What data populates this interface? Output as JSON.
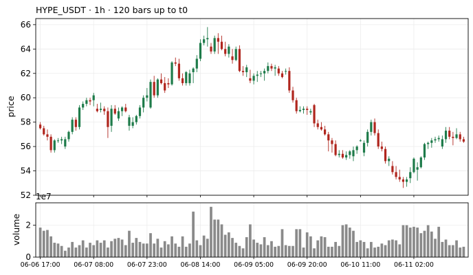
{
  "chart_data": {
    "type": "candlestick",
    "title": "HYPE_USDT  ·  1h  ·  120 bars up to t0",
    "price_ylabel": "price",
    "volume_ylabel": "volume",
    "volume_multiplier": "1e7",
    "price_ylim": [
      52,
      66.5
    ],
    "price_yticks": [
      52,
      54,
      56,
      58,
      60,
      62,
      64,
      66
    ],
    "volume_ylim": [
      0,
      3.4
    ],
    "volume_yticks": [
      0,
      2
    ],
    "x_ticks": [
      {
        "bar": 0,
        "label": "06-06 17:00"
      },
      {
        "bar": 15,
        "label": "06-07 08:00"
      },
      {
        "bar": 30,
        "label": "06-07 23:00"
      },
      {
        "bar": 45,
        "label": "06-08 14:00"
      },
      {
        "bar": 60,
        "label": "06-09 05:00"
      },
      {
        "bar": 75,
        "label": "06-09 20:00"
      },
      {
        "bar": 90,
        "label": "06-10 11:00"
      },
      {
        "bar": 105,
        "label": "06-11 02:00"
      }
    ],
    "grid": true,
    "colors": {
      "up": "#1e7b4a",
      "down": "#b0261e",
      "volume": "#8a8a8a"
    },
    "ohlc": [
      [
        57.8,
        58.0,
        57.4,
        57.5
      ],
      [
        57.5,
        57.7,
        56.9,
        57.0
      ],
      [
        57.0,
        57.4,
        56.5,
        56.8
      ],
      [
        56.8,
        57.0,
        55.5,
        55.7
      ],
      [
        55.7,
        56.6,
        55.5,
        56.5
      ],
      [
        56.5,
        56.7,
        56.3,
        56.5
      ],
      [
        56.5,
        56.8,
        56.2,
        56.6
      ],
      [
        56.0,
        56.8,
        55.8,
        56.6
      ],
      [
        56.6,
        57.3,
        56.4,
        57.2
      ],
      [
        57.2,
        58.4,
        57.0,
        58.2
      ],
      [
        58.2,
        58.4,
        57.3,
        57.6
      ],
      [
        57.6,
        59.4,
        57.4,
        59.2
      ],
      [
        59.2,
        59.7,
        59.0,
        59.5
      ],
      [
        59.5,
        60.0,
        59.3,
        59.8
      ],
      [
        59.8,
        60.0,
        59.4,
        59.7
      ],
      [
        59.8,
        60.4,
        59.3,
        60.2
      ],
      [
        59.1,
        59.5,
        58.8,
        58.9
      ],
      [
        59.0,
        59.6,
        58.8,
        59.1
      ],
      [
        59.1,
        59.3,
        58.6,
        58.9
      ],
      [
        58.9,
        59.2,
        56.7,
        57.6
      ],
      [
        57.7,
        59.4,
        57.2,
        59.1
      ],
      [
        59.1,
        59.4,
        58.6,
        58.7
      ],
      [
        58.3,
        59.2,
        58.1,
        58.9
      ],
      [
        58.9,
        59.3,
        58.5,
        59.2
      ],
      [
        59.2,
        59.5,
        58.8,
        58.9
      ],
      [
        57.7,
        58.6,
        57.3,
        58.4
      ],
      [
        57.7,
        58.4,
        57.5,
        58.0
      ],
      [
        58.0,
        58.6,
        57.8,
        58.5
      ],
      [
        58.5,
        59.4,
        58.3,
        59.2
      ],
      [
        59.2,
        60.2,
        58.8,
        60.0
      ],
      [
        60.0,
        60.8,
        59.7,
        60.2
      ],
      [
        59.2,
        61.5,
        59.1,
        61.3
      ],
      [
        61.3,
        61.8,
        60.0,
        60.2
      ],
      [
        60.2,
        61.6,
        60.0,
        61.5
      ],
      [
        61.5,
        62.0,
        61.1,
        61.2
      ],
      [
        61.2,
        61.7,
        60.4,
        60.6
      ],
      [
        61.2,
        61.6,
        60.8,
        61.1
      ],
      [
        61.1,
        63.0,
        61.0,
        62.9
      ],
      [
        62.9,
        63.3,
        62.6,
        62.8
      ],
      [
        62.8,
        63.2,
        61.4,
        61.6
      ],
      [
        61.6,
        62.0,
        61.0,
        61.2
      ],
      [
        61.2,
        62.2,
        61.0,
        62.1
      ],
      [
        61.2,
        62.3,
        61.0,
        62.0
      ],
      [
        62.1,
        62.5,
        61.2,
        62.4
      ],
      [
        62.4,
        63.5,
        62.1,
        63.2
      ],
      [
        63.2,
        64.8,
        63.0,
        64.5
      ],
      [
        64.5,
        65.1,
        64.3,
        64.8
      ],
      [
        64.8,
        65.8,
        64.2,
        64.9
      ],
      [
        64.2,
        64.5,
        63.6,
        63.8
      ],
      [
        63.8,
        65.1,
        63.6,
        64.9
      ],
      [
        64.9,
        65.3,
        63.6,
        64.6
      ],
      [
        64.6,
        65.1,
        63.9,
        64.0
      ],
      [
        64.0,
        64.6,
        63.4,
        63.6
      ],
      [
        63.6,
        64.4,
        63.3,
        64.2
      ],
      [
        63.4,
        64.0,
        62.8,
        63.1
      ],
      [
        63.1,
        64.2,
        63.0,
        64.0
      ],
      [
        64.0,
        64.3,
        62.1,
        62.2
      ],
      [
        62.2,
        62.6,
        61.8,
        62.1
      ],
      [
        62.1,
        62.7,
        61.7,
        62.5
      ],
      [
        61.6,
        62.3,
        61.2,
        61.4
      ],
      [
        61.4,
        62.0,
        61.1,
        61.8
      ],
      [
        61.8,
        62.2,
        61.3,
        61.9
      ],
      [
        62.0,
        62.2,
        61.7,
        62.0
      ],
      [
        62.0,
        62.4,
        61.4,
        62.2
      ],
      [
        62.2,
        62.9,
        62.0,
        62.6
      ],
      [
        62.6,
        62.8,
        62.2,
        62.4
      ],
      [
        62.4,
        62.7,
        61.8,
        62.5
      ],
      [
        62.4,
        62.6,
        61.8,
        62.0
      ],
      [
        62.0,
        62.2,
        61.6,
        61.7
      ],
      [
        62.2,
        62.4,
        61.9,
        62.2
      ],
      [
        62.2,
        62.5,
        60.4,
        60.6
      ],
      [
        60.6,
        60.9,
        59.6,
        59.8
      ],
      [
        59.8,
        60.0,
        58.7,
        58.9
      ],
      [
        58.9,
        59.3,
        58.8,
        59.0
      ],
      [
        59.0,
        59.3,
        58.7,
        59.1
      ],
      [
        59.1,
        59.3,
        58.6,
        59.0
      ],
      [
        58.8,
        59.1,
        58.6,
        58.9
      ],
      [
        59.4,
        59.5,
        57.6,
        57.9
      ],
      [
        57.9,
        58.2,
        57.4,
        57.6
      ],
      [
        57.6,
        58.0,
        57.3,
        57.4
      ],
      [
        57.4,
        57.7,
        56.9,
        57.0
      ],
      [
        57.0,
        57.2,
        55.6,
        56.5
      ],
      [
        56.5,
        56.7,
        55.5,
        56.2
      ],
      [
        56.2,
        56.5,
        55.2,
        55.3
      ],
      [
        55.3,
        55.7,
        55.1,
        55.4
      ],
      [
        55.4,
        55.7,
        55.0,
        55.1
      ],
      [
        55.1,
        55.6,
        54.9,
        55.3
      ],
      [
        55.3,
        55.7,
        55.0,
        55.6
      ],
      [
        55.2,
        56.0,
        54.8,
        55.7
      ],
      [
        55.7,
        56.1,
        55.4,
        56.0
      ],
      [
        56.5,
        56.6,
        56.4,
        56.5
      ],
      [
        55.5,
        56.5,
        55.2,
        56.3
      ],
      [
        56.3,
        57.4,
        56.0,
        57.2
      ],
      [
        57.2,
        58.2,
        56.9,
        58.0
      ],
      [
        58.0,
        58.3,
        56.9,
        57.1
      ],
      [
        57.1,
        57.4,
        55.8,
        56.0
      ],
      [
        56.0,
        56.4,
        55.6,
        55.8
      ],
      [
        55.8,
        56.0,
        54.6,
        54.8
      ],
      [
        54.8,
        55.2,
        54.4,
        55.0
      ],
      [
        54.4,
        54.8,
        53.7,
        53.9
      ],
      [
        53.9,
        54.4,
        53.3,
        53.5
      ],
      [
        53.5,
        54.1,
        53.1,
        53.3
      ],
      [
        53.3,
        53.5,
        52.6,
        53.1
      ],
      [
        53.1,
        53.5,
        52.7,
        53.3
      ],
      [
        53.4,
        54.3,
        53.0,
        53.9
      ],
      [
        53.9,
        55.1,
        53.8,
        55.0
      ],
      [
        54.1,
        54.7,
        53.2,
        54.3
      ],
      [
        54.3,
        55.2,
        54.2,
        55.1
      ],
      [
        55.1,
        56.3,
        54.9,
        56.2
      ],
      [
        56.2,
        56.4,
        55.8,
        56.3
      ],
      [
        56.3,
        56.7,
        55.9,
        56.5
      ],
      [
        56.5,
        56.8,
        56.3,
        56.6
      ],
      [
        56.6,
        56.9,
        56.4,
        56.7
      ],
      [
        56.0,
        56.9,
        55.8,
        56.6
      ],
      [
        56.6,
        57.6,
        56.3,
        57.3
      ],
      [
        57.3,
        57.6,
        56.6,
        56.8
      ],
      [
        56.8,
        57.2,
        56.1,
        56.7
      ],
      [
        56.7,
        57.5,
        56.6,
        57.0
      ],
      [
        57.0,
        57.2,
        56.4,
        56.6
      ],
      [
        56.6,
        56.8,
        56.3,
        56.4
      ]
    ],
    "volume": [
      1.85,
      1.65,
      1.7,
      1.3,
      0.9,
      0.85,
      0.7,
      0.4,
      0.6,
      0.95,
      0.6,
      0.75,
      1.05,
      0.6,
      0.9,
      0.75,
      1.05,
      0.9,
      1.05,
      0.6,
      1.0,
      1.15,
      1.2,
      1.1,
      0.75,
      1.65,
      0.9,
      1.2,
      0.95,
      0.85,
      0.85,
      1.5,
      0.85,
      1.15,
      0.6,
      1.0,
      0.8,
      1.3,
      0.85,
      0.65,
      1.3,
      0.65,
      0.85,
      2.85,
      1.05,
      0.75,
      1.35,
      1.15,
      3.15,
      2.35,
      2.35,
      2.05,
      1.4,
      1.55,
      1.2,
      0.9,
      0.7,
      0.55,
      1.25,
      2.05,
      1.1,
      0.9,
      0.8,
      1.25,
      0.75,
      1.0,
      0.65,
      0.7,
      1.75,
      0.75,
      0.7,
      0.7,
      1.75,
      1.75,
      0.6,
      1.55,
      1.3,
      0.55,
      1.05,
      1.3,
      1.25,
      0.65,
      0.65,
      0.95,
      0.7,
      2.0,
      2.05,
      1.85,
      1.65,
      0.95,
      1.05,
      0.95,
      0.55,
      0.95,
      0.6,
      0.65,
      0.85,
      0.75,
      1.05,
      1.1,
      1.05,
      0.8,
      2.0,
      2.0,
      1.85,
      1.9,
      1.85,
      1.5,
      1.65,
      2.0,
      1.6,
      1.15,
      1.9,
      0.95,
      1.1,
      0.75,
      0.75,
      1.05,
      0.6,
      0.65
    ]
  }
}
